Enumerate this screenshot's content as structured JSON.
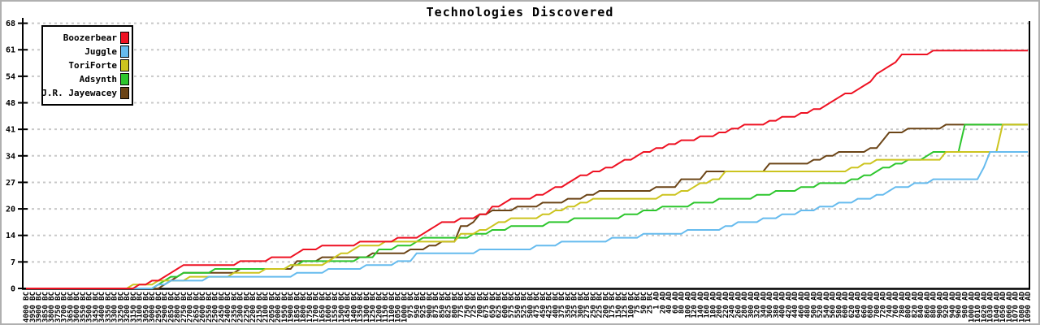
{
  "title": "Technologies Discovered",
  "axes": {
    "y_tick_labels": [
      "0",
      "7",
      "14",
      "20",
      "27",
      "34",
      "41",
      "48",
      "54",
      "61",
      "68"
    ],
    "ylim": [
      0,
      68
    ],
    "grid": "horizontal-dashed"
  },
  "colors": {
    "background": "#ffffff",
    "frame_border": "#b0b0b0",
    "axis": "#000000",
    "gridline": "#c8c8c8",
    "legend_border": "#000000"
  },
  "chart_data": {
    "type": "line",
    "title": "Technologies Discovered",
    "xlabel": "",
    "ylabel": "",
    "ylim": [
      0,
      68
    ],
    "y_ticks": [
      "0",
      "7",
      "14",
      "20",
      "27",
      "34",
      "41",
      "48",
      "54",
      "61",
      "68"
    ],
    "legend_position": "top-left",
    "grid": "horizontal-dashed",
    "x_labels": [
      "4000 BC",
      "3950 BC",
      "3900 BC",
      "3850 BC",
      "3800 BC",
      "3750 BC",
      "3700 BC",
      "3650 BC",
      "3600 BC",
      "3550 BC",
      "3500 BC",
      "3450 BC",
      "3400 BC",
      "3350 BC",
      "3300 BC",
      "3250 BC",
      "3200 BC",
      "3150 BC",
      "3100 BC",
      "3050 BC",
      "3000 BC",
      "2950 BC",
      "2900 BC",
      "2850 BC",
      "2800 BC",
      "2750 BC",
      "2700 BC",
      "2650 BC",
      "2600 BC",
      "2550 BC",
      "2500 BC",
      "2450 BC",
      "2400 BC",
      "2350 BC",
      "2300 BC",
      "2250 BC",
      "2200 BC",
      "2150 BC",
      "2100 BC",
      "2050 BC",
      "2000 BC",
      "1950 BC",
      "1900 BC",
      "1850 BC",
      "1800 BC",
      "1750 BC",
      "1700 BC",
      "1650 BC",
      "1600 BC",
      "1550 BC",
      "1500 BC",
      "1450 BC",
      "1400 BC",
      "1350 BC",
      "1300 BC",
      "1250 BC",
      "1200 BC",
      "1150 BC",
      "1100 BC",
      "1050 BC",
      "1000 BC",
      "975 BC",
      "950 BC",
      "925 BC",
      "900 BC",
      "875 BC",
      "850 BC",
      "825 BC",
      "800 BC",
      "775 BC",
      "750 BC",
      "725 BC",
      "700 BC",
      "675 BC",
      "650 BC",
      "625 BC",
      "600 BC",
      "575 BC",
      "550 BC",
      "525 BC",
      "500 BC",
      "475 BC",
      "450 BC",
      "425 BC",
      "400 BC",
      "375 BC",
      "350 BC",
      "325 BC",
      "300 BC",
      "275 BC",
      "250 BC",
      "225 BC",
      "200 BC",
      "175 BC",
      "150 BC",
      "125 BC",
      "100 BC",
      "75 BC",
      "50 BC",
      "25 BC",
      "1 AD",
      "20 AD",
      "40 AD",
      "60 AD",
      "80 AD",
      "100 AD",
      "120 AD",
      "140 AD",
      "160 AD",
      "180 AD",
      "200 AD",
      "220 AD",
      "240 AD",
      "260 AD",
      "280 AD",
      "300 AD",
      "320 AD",
      "340 AD",
      "360 AD",
      "380 AD",
      "400 AD",
      "420 AD",
      "440 AD",
      "460 AD",
      "480 AD",
      "500 AD",
      "520 AD",
      "540 AD",
      "560 AD",
      "580 AD",
      "600 AD",
      "620 AD",
      "640 AD",
      "660 AD",
      "680 AD",
      "700 AD",
      "720 AD",
      "740 AD",
      "760 AD",
      "780 AD",
      "800 AD",
      "820 AD",
      "840 AD",
      "860 AD",
      "880 AD",
      "900 AD",
      "920 AD",
      "940 AD",
      "960 AD",
      "980 AD",
      "1000 AD",
      "1010 AD",
      "1020 AD",
      "1030 AD",
      "1040 AD",
      "1050 AD",
      "1060 AD",
      "1070 AD",
      "1080 AD",
      "1090 AD"
    ],
    "series": [
      {
        "name": "Boozerbear",
        "color": "#ee1122",
        "final_value": 61,
        "values": [
          0,
          0,
          0,
          0,
          0,
          0,
          0,
          0,
          0,
          0,
          0,
          0,
          0,
          0,
          0,
          0,
          0,
          0,
          1,
          1,
          2,
          2,
          3,
          4,
          5,
          6,
          6,
          6,
          6,
          6,
          6,
          6,
          6,
          6,
          7,
          7,
          7,
          7,
          7,
          8,
          8,
          8,
          8,
          9,
          10,
          10,
          10,
          11,
          11,
          11,
          11,
          11,
          11,
          12,
          12,
          12,
          12,
          12,
          12,
          13,
          13,
          13,
          13,
          14,
          15,
          16,
          17,
          17,
          17,
          18,
          18,
          18,
          19,
          19,
          21,
          21,
          22,
          23,
          23,
          23,
          23,
          24,
          24,
          25,
          26,
          26,
          27,
          28,
          29,
          29,
          30,
          30,
          31,
          31,
          32,
          33,
          33,
          34,
          35,
          35,
          36,
          36,
          37,
          37,
          38,
          38,
          38,
          39,
          39,
          39,
          40,
          40,
          41,
          41,
          42,
          42,
          42,
          42,
          43,
          43,
          44,
          44,
          44,
          45,
          45,
          46,
          46,
          47,
          48,
          49,
          50,
          50,
          51,
          52,
          53,
          55,
          56,
          57,
          58,
          60,
          60,
          60,
          60,
          60,
          61,
          61,
          61,
          61,
          61,
          61,
          61,
          61,
          61,
          61,
          61,
          61,
          61,
          61,
          61,
          61
        ]
      },
      {
        "name": "Juggle",
        "color": "#66bbee",
        "final_value": 35,
        "values": [
          0,
          0,
          0,
          0,
          0,
          0,
          0,
          0,
          0,
          0,
          0,
          0,
          0,
          0,
          0,
          0,
          0,
          0,
          0,
          0,
          0,
          1,
          1,
          2,
          2,
          2,
          2,
          2,
          2,
          3,
          3,
          3,
          3,
          3,
          3,
          3,
          3,
          3,
          3,
          3,
          3,
          3,
          3,
          4,
          4,
          4,
          4,
          4,
          5,
          5,
          5,
          5,
          5,
          5,
          6,
          6,
          6,
          6,
          6,
          7,
          7,
          7,
          9,
          9,
          9,
          9,
          9,
          9,
          9,
          9,
          9,
          9,
          10,
          10,
          10,
          10,
          10,
          10,
          10,
          10,
          10,
          11,
          11,
          11,
          11,
          12,
          12,
          12,
          12,
          12,
          12,
          12,
          12,
          13,
          13,
          13,
          13,
          13,
          14,
          14,
          14,
          14,
          14,
          14,
          14,
          15,
          15,
          15,
          15,
          15,
          15,
          16,
          16,
          17,
          17,
          17,
          17,
          18,
          18,
          18,
          19,
          19,
          19,
          20,
          20,
          20,
          21,
          21,
          21,
          22,
          22,
          22,
          23,
          23,
          23,
          24,
          24,
          25,
          26,
          26,
          26,
          27,
          27,
          27,
          28,
          28,
          28,
          28,
          28,
          28,
          28,
          28,
          31,
          35,
          35,
          35,
          35,
          35,
          35,
          35
        ]
      },
      {
        "name": "ToriForte",
        "color": "#ccc41f",
        "final_value": 42,
        "values": [
          0,
          0,
          0,
          0,
          0,
          0,
          0,
          0,
          0,
          0,
          0,
          0,
          0,
          0,
          0,
          0,
          0,
          1,
          1,
          1,
          1,
          2,
          2,
          2,
          2,
          2,
          3,
          3,
          3,
          3,
          3,
          3,
          3,
          4,
          4,
          4,
          4,
          4,
          5,
          5,
          5,
          5,
          6,
          6,
          6,
          6,
          6,
          6,
          7,
          8,
          9,
          9,
          10,
          11,
          11,
          11,
          11,
          12,
          12,
          12,
          12,
          12,
          12,
          12,
          12,
          12,
          12,
          12,
          12,
          14,
          14,
          14,
          15,
          15,
          16,
          17,
          17,
          18,
          18,
          18,
          18,
          18,
          19,
          19,
          20,
          20,
          21,
          21,
          22,
          22,
          23,
          23,
          23,
          23,
          23,
          23,
          23,
          23,
          23,
          23,
          23,
          24,
          24,
          24,
          25,
          25,
          26,
          27,
          27,
          28,
          28,
          30,
          30,
          30,
          30,
          30,
          30,
          30,
          30,
          30,
          30,
          30,
          30,
          30,
          30,
          30,
          30,
          30,
          30,
          30,
          30,
          31,
          31,
          32,
          32,
          33,
          33,
          33,
          33,
          33,
          33,
          33,
          33,
          33,
          33,
          33,
          35,
          35,
          35,
          35,
          35,
          35,
          35,
          35,
          35,
          42,
          42,
          42,
          42,
          42
        ]
      },
      {
        "name": "Adsynth",
        "color": "#2dc62d",
        "final_value": 42,
        "values": [
          0,
          0,
          0,
          0,
          0,
          0,
          0,
          0,
          0,
          0,
          0,
          0,
          0,
          0,
          0,
          0,
          0,
          0,
          0,
          0,
          0,
          1,
          2,
          3,
          3,
          4,
          4,
          4,
          4,
          4,
          5,
          5,
          5,
          5,
          5,
          5,
          5,
          5,
          5,
          5,
          5,
          5,
          6,
          6,
          7,
          7,
          7,
          7,
          7,
          7,
          7,
          7,
          7,
          8,
          8,
          8,
          10,
          10,
          10,
          11,
          11,
          11,
          12,
          13,
          13,
          13,
          13,
          13,
          13,
          13,
          13,
          14,
          14,
          14,
          15,
          15,
          15,
          16,
          16,
          16,
          16,
          16,
          16,
          17,
          17,
          17,
          17,
          18,
          18,
          18,
          18,
          18,
          18,
          18,
          18,
          19,
          19,
          19,
          20,
          20,
          20,
          21,
          21,
          21,
          21,
          21,
          22,
          22,
          22,
          22,
          23,
          23,
          23,
          23,
          23,
          23,
          24,
          24,
          24,
          25,
          25,
          25,
          25,
          26,
          26,
          26,
          27,
          27,
          27,
          27,
          27,
          28,
          28,
          29,
          29,
          30,
          31,
          31,
          32,
          32,
          33,
          33,
          33,
          34,
          35,
          35,
          35,
          35,
          35,
          42,
          42,
          42,
          42,
          42,
          42,
          42,
          42,
          42,
          42,
          42
        ]
      },
      {
        "name": "J.R. Jayewacey",
        "color": "#6b4416",
        "final_value": 42,
        "values": [
          0,
          0,
          0,
          0,
          0,
          0,
          0,
          0,
          0,
          0,
          0,
          0,
          0,
          0,
          0,
          0,
          0,
          0,
          0,
          0,
          0,
          0,
          1,
          2,
          3,
          4,
          4,
          4,
          4,
          4,
          4,
          4,
          4,
          4,
          5,
          5,
          5,
          5,
          5,
          5,
          5,
          5,
          5,
          7,
          7,
          7,
          7,
          8,
          8,
          8,
          8,
          8,
          8,
          8,
          8,
          9,
          9,
          9,
          9,
          9,
          9,
          10,
          10,
          10,
          11,
          11,
          12,
          12,
          12,
          16,
          16,
          17,
          19,
          19,
          20,
          20,
          20,
          20,
          21,
          21,
          21,
          21,
          22,
          22,
          22,
          22,
          23,
          23,
          23,
          24,
          24,
          25,
          25,
          25,
          25,
          25,
          25,
          25,
          25,
          25,
          26,
          26,
          26,
          26,
          28,
          28,
          28,
          28,
          30,
          30,
          30,
          30,
          30,
          30,
          30,
          30,
          30,
          30,
          32,
          32,
          32,
          32,
          32,
          32,
          32,
          33,
          33,
          34,
          34,
          35,
          35,
          35,
          35,
          35,
          36,
          36,
          38,
          40,
          40,
          40,
          41,
          41,
          41,
          41,
          41,
          41,
          42,
          42,
          42,
          42,
          42,
          42,
          42,
          42,
          42,
          42,
          42,
          42,
          42,
          42
        ]
      }
    ]
  }
}
